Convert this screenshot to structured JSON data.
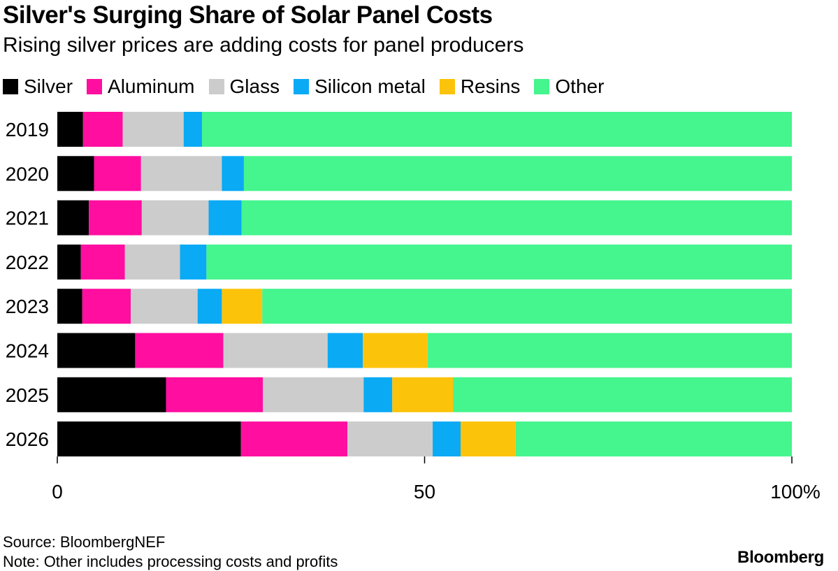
{
  "title": "Silver's Surging Share of Solar Panel Costs",
  "subtitle": "Rising silver prices are adding costs for panel producers",
  "source": "Source: BloombergNEF",
  "note": "Note: Other includes processing costs and profits",
  "brand": "Bloomberg",
  "colors": {
    "Silver": "#000000",
    "Aluminum": "#ff0ea0",
    "Glass": "#cccccc",
    "Silicon metal": "#0aaaf5",
    "Resins": "#fcc30b",
    "Other": "#45f58e"
  },
  "chart_data": {
    "type": "bar",
    "orientation": "horizontal",
    "stacked": true,
    "title": "Silver's Surging Share of Solar Panel Costs",
    "subtitle": "Rising silver prices are adding costs for panel producers",
    "categories": [
      "2019",
      "2020",
      "2021",
      "2022",
      "2023",
      "2024",
      "2025",
      "2026"
    ],
    "series": [
      {
        "name": "Silver",
        "values": [
          3.5,
          5,
          4.3,
          3.2,
          3.4,
          10.6,
          14.8,
          25
        ]
      },
      {
        "name": "Aluminum",
        "values": [
          5.4,
          6.4,
          7.2,
          6,
          6.6,
          12,
          13.2,
          14.5
        ]
      },
      {
        "name": "Glass",
        "values": [
          8.3,
          11,
          9.1,
          7.5,
          9.1,
          14.2,
          13.7,
          11.6
        ]
      },
      {
        "name": "Silicon metal",
        "values": [
          2.5,
          3,
          4.5,
          3.6,
          3.3,
          4.8,
          3.9,
          3.8
        ]
      },
      {
        "name": "Resins",
        "values": [
          0,
          0,
          0,
          0,
          5.5,
          8.8,
          8.3,
          7.5
        ]
      },
      {
        "name": "Other",
        "values": [
          80.3,
          74.6,
          74.9,
          79.7,
          72.1,
          49.6,
          46.1,
          37.6
        ]
      }
    ],
    "xlim": [
      0,
      100
    ],
    "xticks": [
      "0",
      "50",
      "100%"
    ],
    "xtick_values": [
      0,
      50,
      100
    ],
    "xlabel": "",
    "ylabel": "",
    "legend_position": "top-left"
  }
}
